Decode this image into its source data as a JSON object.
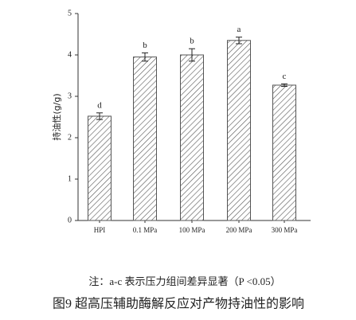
{
  "chart_data": {
    "type": "bar",
    "ylabel": "持油性(g/g)",
    "categories": [
      "HPI",
      "0.1 MPa",
      "100 MPa",
      "200 MPa",
      "300 MPa"
    ],
    "values": [
      2.52,
      3.95,
      4.0,
      4.35,
      3.27
    ],
    "errors": [
      0.08,
      0.1,
      0.15,
      0.08,
      0.03
    ],
    "annotations": [
      "d",
      "b",
      "b",
      "a",
      "c"
    ],
    "color": "#555555",
    "ylim": [
      0,
      5
    ],
    "yticks": [
      0,
      1,
      2,
      3,
      4,
      5
    ],
    "note": "注：a-c 表示压力组间差异显著（P <0.05）",
    "caption": "图9  超高压辅助酶解反应对产物持油性的影响"
  }
}
